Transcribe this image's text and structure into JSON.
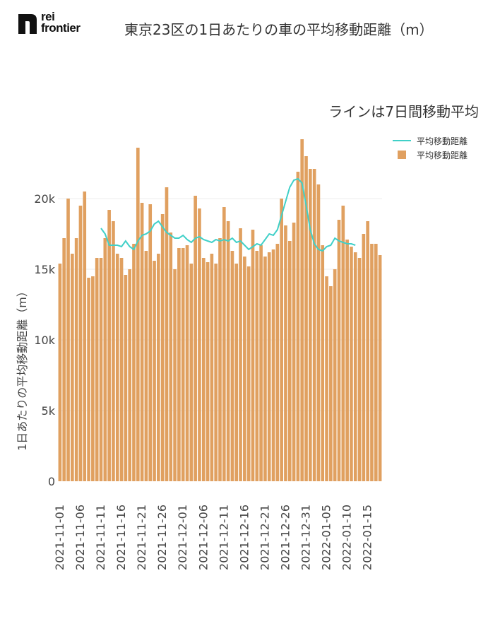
{
  "logo": {
    "text_line1": "rei",
    "text_line2": "frontier"
  },
  "header": {
    "title": "東京23区の1日あたりの車の平均移動距離（m）"
  },
  "chart_data": {
    "type": "bar",
    "title": "東京23区の1日あたりの車の平均移動距離（m）",
    "subtitle": "ラインは7日間移動平均",
    "xlabel": "",
    "ylabel": "1日あたりの平均移動距離（m）",
    "ylim": [
      0,
      24000
    ],
    "yticks": [
      {
        "value": 0,
        "label": "0"
      },
      {
        "value": 5000,
        "label": "5k"
      },
      {
        "value": 10000,
        "label": "10k"
      },
      {
        "value": 15000,
        "label": "15k"
      },
      {
        "value": 20000,
        "label": "20k"
      }
    ],
    "xtick_labels": [
      "2021-11-01",
      "2021-11-06",
      "2021-11-11",
      "2021-11-16",
      "2021-11-21",
      "2021-11-26",
      "2021-12-01",
      "2021-12-06",
      "2021-12-11",
      "2021-12-16",
      "2021-12-21",
      "2021-12-26",
      "2021-12-31",
      "2022-01-05",
      "2022-01-10",
      "2022-01-15"
    ],
    "grid": true,
    "legend_position": "top-right",
    "colors": {
      "bar": "#e0a060",
      "line": "#40d0c8"
    },
    "x_start": "2021-11-01",
    "x_end": "2022-01-20",
    "series": [
      {
        "name": "平均移動距離",
        "type": "bar",
        "values": [
          15400,
          17200,
          20000,
          16100,
          17200,
          19500,
          20500,
          14400,
          14500,
          15800,
          15800,
          17200,
          19200,
          18400,
          16100,
          15800,
          14600,
          15000,
          16800,
          23600,
          19700,
          16300,
          19600,
          15600,
          16100,
          18900,
          20800,
          17600,
          15000,
          16500,
          16500,
          16700,
          15400,
          20200,
          19300,
          15800,
          15500,
          16100,
          15400,
          17200,
          19400,
          18400,
          16300,
          15400,
          17900,
          15900,
          15200,
          17800,
          16300,
          16700,
          15900,
          16200,
          16400,
          16800,
          20000,
          18100,
          17000,
          18300,
          21900,
          24200,
          23000,
          22100,
          22100,
          21000,
          16700,
          14500,
          13800,
          15000,
          18500,
          19500,
          17100,
          16600,
          16200,
          15800,
          17500,
          18400,
          16800,
          16800,
          16000
        ]
      },
      {
        "name": "平均移動距離",
        "type": "line",
        "x_index_start": 10,
        "values": [
          17900,
          17500,
          16700,
          16700,
          16700,
          16600,
          17000,
          16600,
          16400,
          17000,
          17400,
          17500,
          17700,
          18200,
          18400,
          18000,
          17600,
          17400,
          17200,
          17200,
          17400,
          17100,
          16900,
          17200,
          17300,
          17100,
          17000,
          16900,
          17100,
          17000,
          17100,
          17000,
          17200,
          16900,
          17000,
          16700,
          16400,
          16600,
          16800,
          16700,
          17100,
          17500,
          17400,
          17800,
          18800,
          19800,
          20800,
          21300,
          21400,
          21100,
          19500,
          17800,
          16800,
          16400,
          16300,
          16600,
          16700,
          17200,
          17000,
          16900,
          16800,
          16800,
          16700
        ]
      }
    ]
  }
}
